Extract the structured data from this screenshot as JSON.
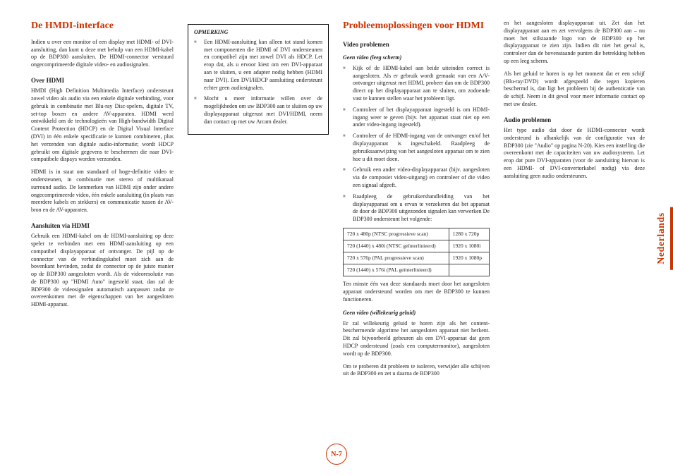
{
  "accent_color": "#cc3300",
  "page_number": "N-7",
  "side_tab_label": "Nederlands",
  "col1": {
    "h1": "De HMDI-interface",
    "intro": "Indien u over een monitor of een display met HDMI- of DVI-aansluiting, dan kunt u deze met behulp van een HDMI-kabel op de BDP300 aansluiten. De HDMI-connector verstuurd ongecomprimeerde digitale video- en audiosignalen.",
    "h2a": "Over HDMI",
    "p1": "HMDI (High Definition Multimedia Interface) ondersteunt zowel video als audio via een enkele digitale verbinding, voor gebruik in combinatie met Blu-ray Disc-spelers, digitale TV, set-top boxen en andere AV-apparaten. HDMI werd ontwikkeld om de technologieën van High-bandwidth Digital Content Protection (HDCP) en de Digital Visual Interface (DVI) in één enkele specificatie te kunnen combineren, plus het verzenden van digitale audio-informatie; wordt HDCP gebruikt om digitale gegevens te beschermen die naar DVI-compatibele dispays worden verzonden.",
    "p2": "HDMI is in staat om standaard of hoge-definitie video te ondersteunen, in combinatie met stereo of multikanaal surround audio. De kenmerken van HDMI zijn onder andere ongecomprimeerde video, één enkele aansluiting (in plaats van meerdere kabels en stekkers) en communicatie tussen de AV-bron en de AV-apparaten.",
    "h2b": "Aansluiten via HDMI",
    "p3": "Gebruik een HDMI-kabel om de HDMI-aansluiting op deze speler te verbinden met een HDMI-aansluiting op een compatibel displayapparaat of ontvanger. De pijl op de connector van de verbindingskabel moet zich aan de bovenkant bevinden, zodat de connector op de juiste manier op de BDP300 aangesloten wordt. Als de videoresolutie van de BDP300 op \"HDMI Auto\" ingesteld staat, dan zal de BDP300 de videosignalen automatisch aanpassen zodat ze overeenkomen met de eigenschappen van het aangesloten HDMI-apparaat."
  },
  "col2": {
    "note_title": "OPMERKING",
    "note_items": [
      "Een HDMI-aansluiting kan alleen tot stand komen met componenten die HDMI of DVI ondersteunen en compatibel zijn met zowel DVI als HDCP. Let erop dat, als u ervoor kiest om een DVI-apparaat aan te sluiten, u een adapter nodig hebben (HDMI naar DVI). Een DVI/HDCP aansluiting ondersteunt echter geen audiosignalen.",
      "Mocht u meer informatie willen over de mogelijkheden om uw BDP300 aan te sluiten op uw displayapparaat uitgerust met DVI/HDMI, neem dan contact op met uw Arcam dealer."
    ]
  },
  "col3": {
    "h1": "Probleemoplossingen voor HDMI",
    "h2a": "Video problemen",
    "h3a": "Geen video (leeg scherm)",
    "bullets": [
      "Kijk of de HDMI-kabel aan beide uiteinden correct is aangesloten. Als er gebruik wordt gemaakt van een A/V-ontvanger uitgerust met HDMI, probeer dan om de BDP300 direct op het displayapparaat aan te sluiten, om zodoende vast te kunnen stellen waar het probleem ligt.",
      "Controleer of het displayapparaat ingesteld is om HDMI-ingang weer te geven (bijv. het apparaat staat niet op een ander video-ingang ingesteld).",
      "Controleer of de HDMI-ingang van de ontvanger en/of het displayapparaat is ingeschakeld. Raadpleeg de gebruiksaanwijzing van het aangesloten apparaat om te zien hoe u dit moet doen.",
      "Gebruik een ander video-displayapparaat (bijv. aangesloten via de composiet video-uitgang) en controleer of die video een signaal afgeeft.",
      "Raadpleeg de gebruikershandleiding van het displayapparaat om u ervan te verzekeren dat het apparaat de door de BDP300 uitgezonden signalen kan verwerken De BDP300 ondersteunt het volgende:"
    ],
    "table": {
      "rows": [
        [
          "720 x 480p (NTSC progressieve scan)",
          "1280 x 720p"
        ],
        [
          "720 (1440) x 480i (NTSC geïnterlinieerd)",
          "1920 x 1080i"
        ],
        [
          "720 x 576p (PAL progressieve scan)",
          "1920 x 1080p"
        ],
        [
          "720 (1440) x 576i (PAL geïnterlinieerd)",
          ""
        ]
      ]
    },
    "p_after_table": "Ten minste één van deze standaards moet door het aangesloten apparaat ondersteund worden om met de BDP300 te kunnen functioneren.",
    "h3b": "Geen video (willekeurig geluid)",
    "p4": "Er zal willekeurig geluid te horen zijn als het content-beschermende algoritme het aangesloten apparaat niet herkent. Dit zal bijvoorbeeld gebeuren als een DVI-apparaat dat geen HDCP ondersteund (zoals een computermonitor), aangesloten wordt op de BDP300.",
    "p5": "Om te proberen dit probleem te isoleren, verwijder alle schijven uit de BDP300 en zet u daarna de BDP300"
  },
  "col4": {
    "p1": "en het aangesloten displayapparaat uit. Zet dan het displayapparaat aan en zet vervolgens de BDP300 aan – nu moet het stilstaande logo van de BDP300 op het displayapparaat te zien zijn. Indien dit niet het geval is, controleer dan de bovenstaande punten die betrekking hebben op een leeg scherm.",
    "p2": "Als het geluid te horen is op het moment dat er een schijf (Blu-ray/DVD) wordt afgespeeld die tegen kopieren beschermd is, dan ligt het probleem bij de authenticatie van de schijf. Neem in dit geval voor meer informatie contact op met uw dealer.",
    "h2": "Audio problemen",
    "p3": "Het type audio dat door de HDMI-connector wordt ondersteund is afhankelijk van de configuratie van de BDP300 (zie \"Audio\" op pagina N-20). Kies een instelling die overeenkomt met de capaciteiten van uw audiosysteem. Let erop dat pure DVI-apparaten (voor de aansluiting hiervan is een HDMI- of DVI-convertorkabel nodig) via deze aansluiting geen audio ondersteunen."
  }
}
